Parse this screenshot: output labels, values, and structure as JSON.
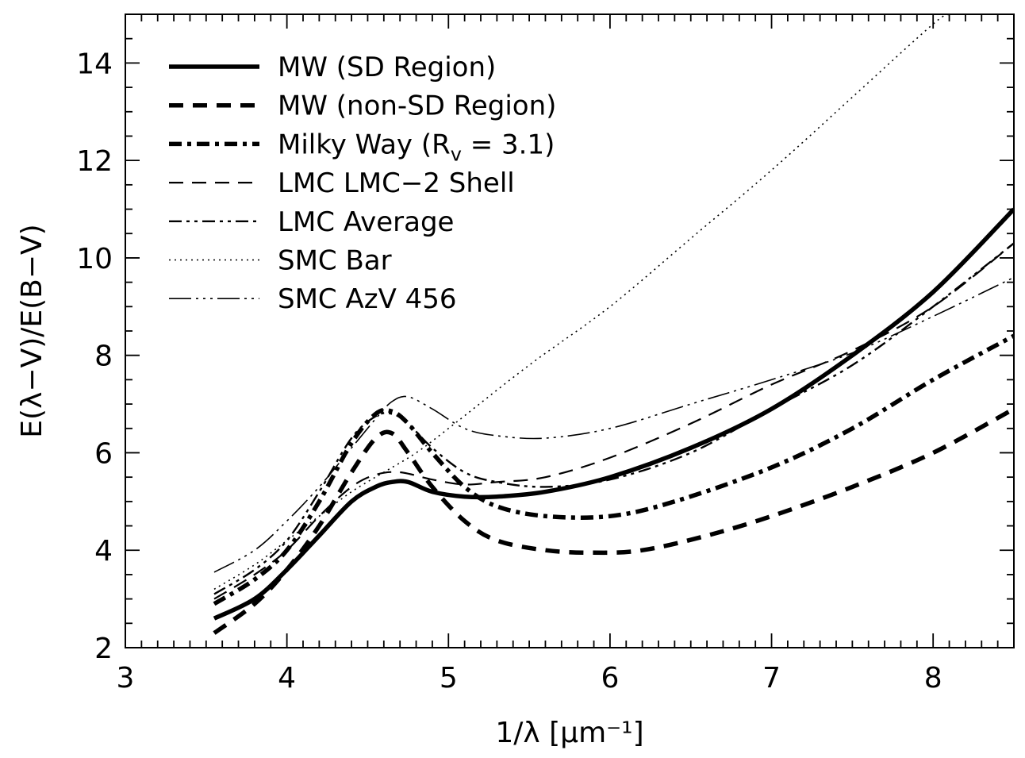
{
  "chart_data": {
    "type": "line",
    "xlabel": "1/λ [μm⁻¹]",
    "ylabel": "E(λ−V)/E(B−V)",
    "xlim": [
      3,
      8.5
    ],
    "ylim": [
      2,
      15
    ],
    "xticks": [
      3,
      4,
      5,
      6,
      7,
      8
    ],
    "xtick_labels": [
      "3",
      "4",
      "5",
      "6",
      "7",
      "8"
    ],
    "yticks": [
      2,
      4,
      6,
      8,
      10,
      12,
      14
    ],
    "ytick_labels": [
      "2",
      "4",
      "6",
      "8",
      "10",
      "12",
      "14"
    ],
    "legend_position": "top-left",
    "series": [
      {
        "name": "MW (SD Region)",
        "style": "solid-thick",
        "points": [
          [
            3.55,
            2.6
          ],
          [
            3.8,
            3.0
          ],
          [
            4.0,
            3.6
          ],
          [
            4.2,
            4.3
          ],
          [
            4.4,
            5.0
          ],
          [
            4.55,
            5.3
          ],
          [
            4.65,
            5.4
          ],
          [
            4.75,
            5.4
          ],
          [
            4.9,
            5.2
          ],
          [
            5.1,
            5.1
          ],
          [
            5.3,
            5.1
          ],
          [
            5.6,
            5.2
          ],
          [
            6.0,
            5.5
          ],
          [
            6.5,
            6.1
          ],
          [
            7.0,
            6.9
          ],
          [
            7.5,
            8.0
          ],
          [
            8.0,
            9.3
          ],
          [
            8.5,
            11.0
          ]
        ]
      },
      {
        "name": "MW (non-SD Region)",
        "style": "dashed-thick",
        "points": [
          [
            3.55,
            2.3
          ],
          [
            3.8,
            2.9
          ],
          [
            4.0,
            3.6
          ],
          [
            4.2,
            4.5
          ],
          [
            4.4,
            5.6
          ],
          [
            4.55,
            6.3
          ],
          [
            4.65,
            6.4
          ],
          [
            4.75,
            6.0
          ],
          [
            4.9,
            5.3
          ],
          [
            5.1,
            4.6
          ],
          [
            5.3,
            4.2
          ],
          [
            5.6,
            4.0
          ],
          [
            5.9,
            3.95
          ],
          [
            6.2,
            4.0
          ],
          [
            6.6,
            4.3
          ],
          [
            7.0,
            4.7
          ],
          [
            7.5,
            5.3
          ],
          [
            8.0,
            6.0
          ],
          [
            8.5,
            6.9
          ]
        ]
      },
      {
        "name": "Milky Way (R",
        "name_sub": "v",
        "name_end": " = 3.1)",
        "style": "dashdot-thick",
        "points": [
          [
            3.55,
            2.9
          ],
          [
            3.8,
            3.4
          ],
          [
            4.0,
            4.0
          ],
          [
            4.2,
            5.0
          ],
          [
            4.4,
            6.2
          ],
          [
            4.55,
            6.8
          ],
          [
            4.65,
            6.85
          ],
          [
            4.75,
            6.6
          ],
          [
            4.9,
            6.0
          ],
          [
            5.1,
            5.3
          ],
          [
            5.3,
            4.9
          ],
          [
            5.6,
            4.7
          ],
          [
            6.0,
            4.7
          ],
          [
            6.4,
            5.0
          ],
          [
            7.0,
            5.7
          ],
          [
            7.5,
            6.5
          ],
          [
            8.0,
            7.5
          ],
          [
            8.5,
            8.4
          ]
        ]
      },
      {
        "name": "LMC LMC−2 Shell",
        "style": "dashed-thin",
        "points": [
          [
            3.55,
            3.0
          ],
          [
            3.8,
            3.5
          ],
          [
            4.0,
            4.0
          ],
          [
            4.2,
            4.7
          ],
          [
            4.4,
            5.3
          ],
          [
            4.55,
            5.55
          ],
          [
            4.7,
            5.6
          ],
          [
            4.9,
            5.45
          ],
          [
            5.1,
            5.35
          ],
          [
            5.3,
            5.4
          ],
          [
            5.6,
            5.5
          ],
          [
            6.0,
            5.9
          ],
          [
            6.5,
            6.6
          ],
          [
            7.0,
            7.4
          ],
          [
            7.5,
            8.1
          ],
          [
            8.0,
            9.0
          ],
          [
            8.5,
            10.3
          ]
        ]
      },
      {
        "name": "LMC Average",
        "style": "dashdotdot-thin",
        "points": [
          [
            3.55,
            3.1
          ],
          [
            3.8,
            3.6
          ],
          [
            4.0,
            4.2
          ],
          [
            4.2,
            5.2
          ],
          [
            4.4,
            6.3
          ],
          [
            4.55,
            6.75
          ],
          [
            4.65,
            6.8
          ],
          [
            4.75,
            6.6
          ],
          [
            4.9,
            6.1
          ],
          [
            5.1,
            5.6
          ],
          [
            5.3,
            5.4
          ],
          [
            5.6,
            5.3
          ],
          [
            6.0,
            5.45
          ],
          [
            6.5,
            6.0
          ],
          [
            7.0,
            6.9
          ],
          [
            7.5,
            7.8
          ],
          [
            8.0,
            9.0
          ],
          [
            8.5,
            10.3
          ]
        ]
      },
      {
        "name": "SMC Bar",
        "style": "dotted-thin",
        "points": [
          [
            3.55,
            3.2
          ],
          [
            3.8,
            3.7
          ],
          [
            4.0,
            4.2
          ],
          [
            4.2,
            4.7
          ],
          [
            4.4,
            5.2
          ],
          [
            4.6,
            5.6
          ],
          [
            4.8,
            6.0
          ],
          [
            5.0,
            6.5
          ],
          [
            5.5,
            7.8
          ],
          [
            6.0,
            9.0
          ],
          [
            6.5,
            10.4
          ],
          [
            7.0,
            11.8
          ],
          [
            7.5,
            13.3
          ],
          [
            8.0,
            14.8
          ],
          [
            8.1,
            15.0
          ]
        ]
      },
      {
        "name": "SMC AzV 456",
        "style": "longdash-dotdotdot-thin",
        "points": [
          [
            3.55,
            3.55
          ],
          [
            3.8,
            4.0
          ],
          [
            4.0,
            4.6
          ],
          [
            4.2,
            5.3
          ],
          [
            4.4,
            6.1
          ],
          [
            4.55,
            6.7
          ],
          [
            4.65,
            7.05
          ],
          [
            4.75,
            7.15
          ],
          [
            4.9,
            6.9
          ],
          [
            5.1,
            6.5
          ],
          [
            5.3,
            6.35
          ],
          [
            5.6,
            6.3
          ],
          [
            6.0,
            6.5
          ],
          [
            6.5,
            7.0
          ],
          [
            7.0,
            7.5
          ],
          [
            7.5,
            8.05
          ],
          [
            8.0,
            8.8
          ],
          [
            8.5,
            9.6
          ]
        ]
      }
    ]
  }
}
